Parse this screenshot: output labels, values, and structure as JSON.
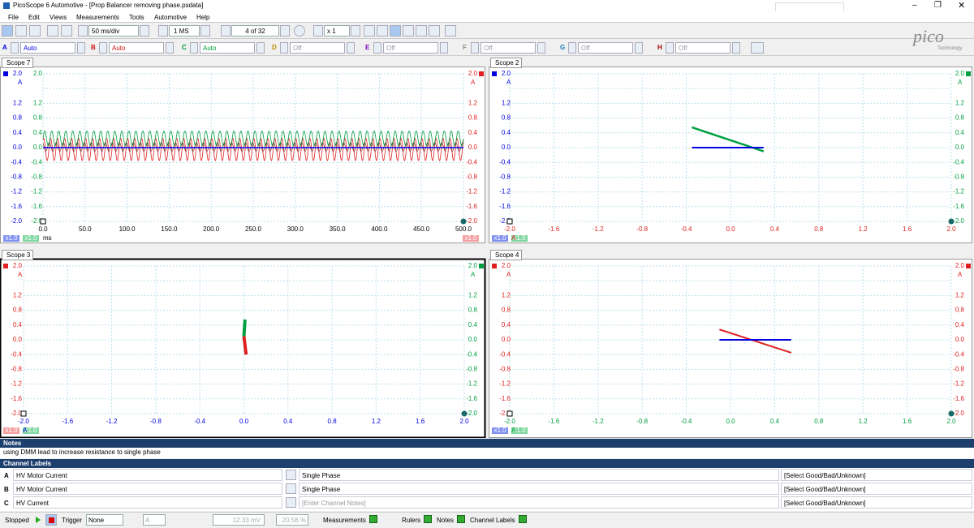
{
  "window": {
    "title": "PicoScope 6 Automotive - [Prop Balancer removing phase.psdata]"
  },
  "menu": [
    "File",
    "Edit",
    "Views",
    "Measurements",
    "Tools",
    "Automotive",
    "Help"
  ],
  "toolbar": {
    "timebase": "50 ms/div",
    "samples": "1 MS",
    "buffer": "4 of 32",
    "zoom": "x 1"
  },
  "channels": [
    {
      "letter": "A",
      "setting": "Auto"
    },
    {
      "letter": "B",
      "setting": "Auto"
    },
    {
      "letter": "C",
      "setting": "Auto"
    },
    {
      "letter": "D",
      "setting": "Off"
    },
    {
      "letter": "E",
      "setting": "Off"
    },
    {
      "letter": "F",
      "setting": "Off"
    },
    {
      "letter": "G",
      "setting": "Off"
    },
    {
      "letter": "H",
      "setting": "Off"
    }
  ],
  "logo": {
    "name": "pico",
    "sub": "Technology"
  },
  "scopes": [
    {
      "tab": "Scope 7",
      "y_unit": "A",
      "y_ticks": [
        "2.0",
        "1.2",
        "0.8",
        "0.4",
        "0.0",
        "-0.4",
        "-0.8",
        "-1.2",
        "-1.6",
        "-2.0"
      ],
      "x_ticks": [
        "0.0",
        "50.0",
        "100.0",
        "150.0",
        "200.0",
        "250.0",
        "300.0",
        "350.0",
        "400.0",
        "450.0",
        "500.0"
      ],
      "x_unit": "ms",
      "scale_labels": [
        "x1.0",
        "x1.0",
        "x1.0"
      ]
    },
    {
      "tab": "Scope 2",
      "y_unit": "A",
      "y_ticks": [
        "2.0",
        "1.2",
        "0.8",
        "0.4",
        "0.0",
        "-0.4",
        "-0.8",
        "-1.2",
        "-1.6",
        "-2.0"
      ],
      "x_ticks": [
        "-2.0",
        "-1.6",
        "-1.2",
        "-0.8",
        "-0.4",
        "0.0",
        "0.4",
        "0.8",
        "1.2",
        "1.6",
        "2.0"
      ],
      "x_unit": "A",
      "scale_labels": [
        "x1.0",
        "x1.0"
      ]
    },
    {
      "tab": "Scope 3",
      "y_unit": "A",
      "y_ticks": [
        "2.0",
        "1.2",
        "0.8",
        "0.4",
        "0.0",
        "-0.4",
        "-0.8",
        "-1.2",
        "-1.6",
        "-2.0"
      ],
      "x_ticks": [
        "-2.0",
        "-1.6",
        "-1.2",
        "-0.8",
        "-0.4",
        "0.0",
        "0.4",
        "0.8",
        "1.2",
        "1.6",
        "2.0"
      ],
      "x_unit": "A",
      "scale_labels": [
        "x1.0",
        "x1.0"
      ]
    },
    {
      "tab": "Scope 4",
      "y_unit": "A",
      "y_ticks": [
        "2.0",
        "1.2",
        "0.8",
        "0.4",
        "0.0",
        "-0.4",
        "-0.8",
        "-1.2",
        "-1.6",
        "-2.0"
      ],
      "x_ticks": [
        "-2.0",
        "-1.6",
        "-1.2",
        "-0.8",
        "-0.4",
        "0.0",
        "0.4",
        "0.8",
        "1.2",
        "1.6",
        "2.0"
      ],
      "x_unit": "A",
      "scale_labels": [
        "x1.0",
        "x1.0"
      ]
    }
  ],
  "notes": {
    "header": "Notes",
    "text": "using DMM lead to increase resistance to single phase"
  },
  "channel_labels": {
    "header": "Channel Labels",
    "rows": [
      [
        "A",
        "HV Motor Current",
        "Single Phase",
        "[Select Good/Bad/Unknown]"
      ],
      [
        "B",
        "HV Motor Current",
        "Single Phase",
        "[Select Good/Bad/Unknown]"
      ],
      [
        "C",
        "HV Current",
        "[Enter Channel Notes]",
        "[Select Good/Bad/Unknown]"
      ]
    ]
  },
  "status": {
    "state": "Stopped",
    "trigger_label": "Trigger",
    "trigger": "None",
    "channel": "A",
    "level": "12.33 mV",
    "pretrigger": "20.56 %",
    "items": [
      "Measurements",
      "Rulers",
      "Notes",
      "Channel Labels"
    ]
  }
}
